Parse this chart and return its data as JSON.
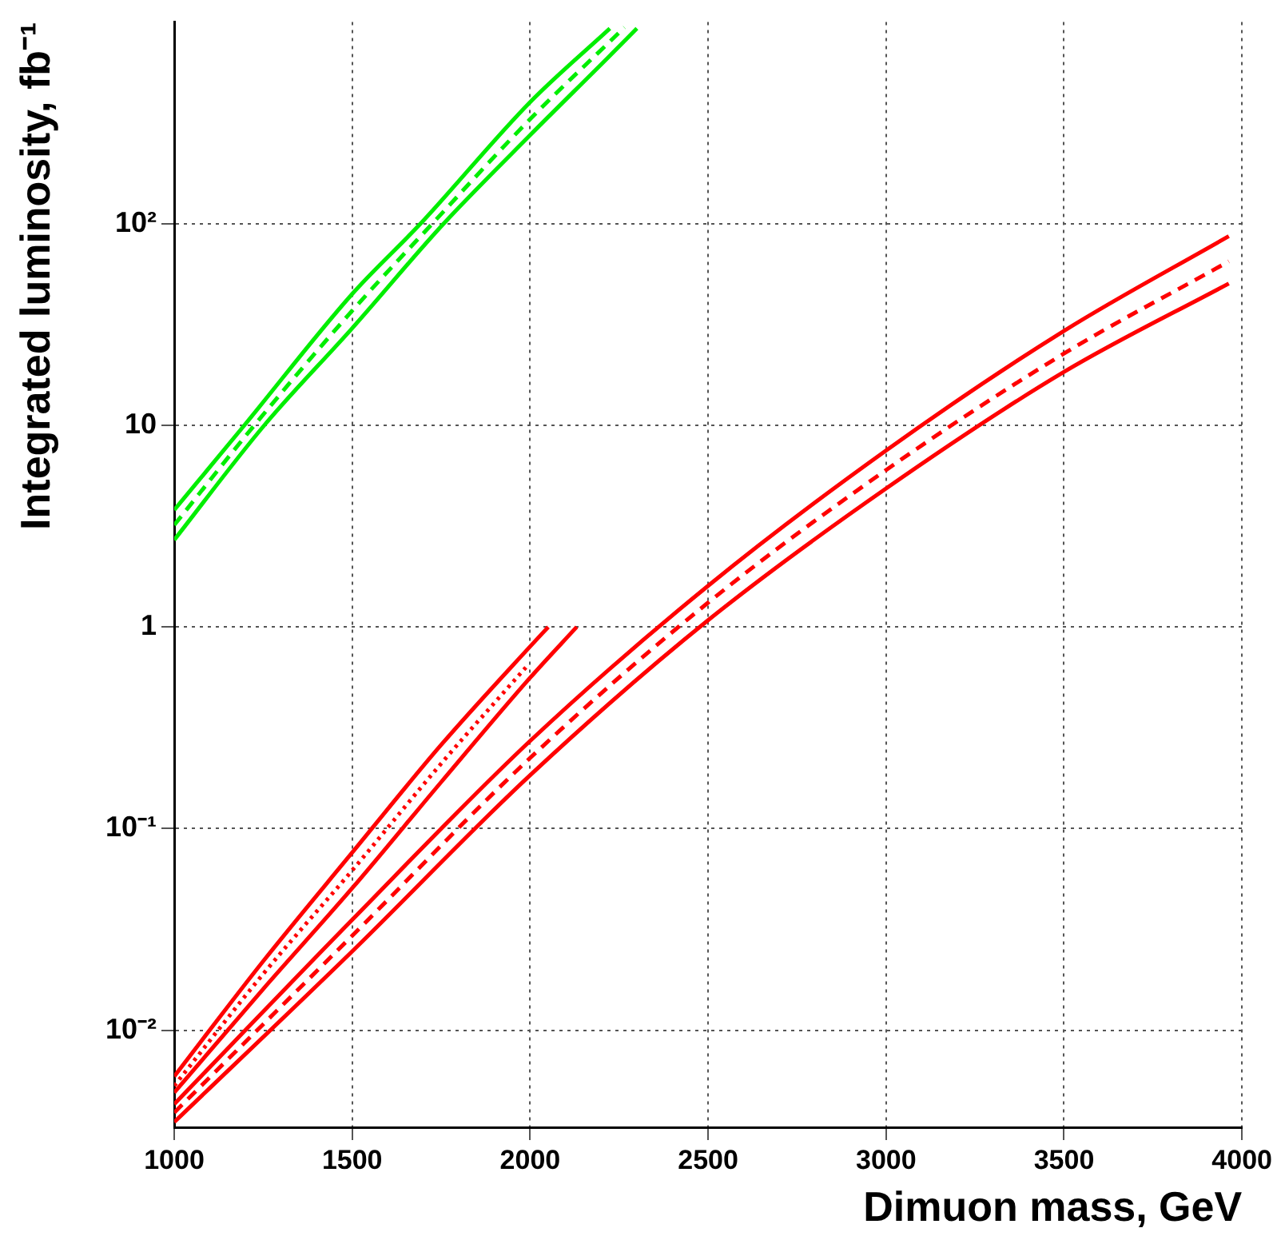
{
  "chart_data": {
    "type": "line",
    "xlabel": "Dimuon mass, GeV",
    "ylabel": "Integrated luminosity, fb⁻¹",
    "xlim": [
      1000,
      4000
    ],
    "xticks": [
      1000,
      1500,
      2000,
      2500,
      3000,
      3500,
      4000
    ],
    "ylim": [
      0.0033,
      1000
    ],
    "yticks": [
      {
        "value": 0.01,
        "label": "10⁻²"
      },
      {
        "value": 0.1,
        "label": "10⁻¹"
      },
      1,
      10,
      {
        "value": 100,
        "label": "10²"
      }
    ],
    "log": "y",
    "grid": true,
    "legend": false,
    "marker": "none",
    "series": [
      {
        "color": "#00ee00",
        "line_style": "solid",
        "x": [
          1000,
          1197,
          1500,
          1692,
          2000,
          2224
        ],
        "values": [
          3.8,
          10,
          44.8,
          100,
          401,
          930
        ]
      },
      {
        "color": "#00ee00",
        "line_style": "dashed",
        "x": [
          1000,
          1225,
          1500,
          1725,
          2000,
          2265
        ],
        "values": [
          3.2,
          10,
          37,
          100,
          330,
          940
        ]
      },
      {
        "color": "#00ee00",
        "line_style": "solid",
        "x": [
          1000,
          1253,
          1500,
          1757,
          2000,
          2220,
          2300
        ],
        "values": [
          2.7,
          10,
          30.3,
          100,
          275,
          670,
          930
        ]
      },
      {
        "color": "#ff0000",
        "line_style": "solid",
        "x": [
          1000,
          1250,
          1500,
          1750,
          2000,
          2051
        ],
        "values": [
          0.0059,
          0.022,
          0.076,
          0.26,
          0.8,
          1
        ]
      },
      {
        "color": "#ff0000",
        "line_style": "dotted",
        "x": [
          1000,
          1250,
          1500,
          1750,
          1988
        ],
        "values": [
          0.0053,
          0.019,
          0.062,
          0.21,
          0.63
        ]
      },
      {
        "color": "#ff0000",
        "line_style": "solid",
        "x": [
          1000,
          1250,
          1500,
          1750,
          2000,
          2131
        ],
        "values": [
          0.0049,
          0.016,
          0.0506,
          0.17,
          0.56,
          1
        ]
      },
      {
        "color": "#ff0000",
        "line_style": "solid",
        "x": [
          1000,
          1500,
          2000,
          2500,
          3000,
          3500,
          3963
        ],
        "values": [
          0.0043,
          0.0353,
          0.272,
          1.6,
          7.5,
          29.4,
          86.7
        ]
      },
      {
        "color": "#ff0000",
        "line_style": "dashed",
        "x": [
          1000,
          1500,
          2000,
          2500,
          3000,
          3500,
          3963
        ],
        "values": [
          0.0039,
          0.0294,
          0.224,
          1.32,
          6.0,
          22.7,
          65
        ]
      },
      {
        "color": "#ff0000",
        "line_style": "solid",
        "x": [
          1000,
          1500,
          2000,
          2500,
          3000,
          3500,
          3963
        ],
        "values": [
          0.0035,
          0.0246,
          0.184,
          1.08,
          4.86,
          18.4,
          50.5
        ]
      }
    ]
  }
}
